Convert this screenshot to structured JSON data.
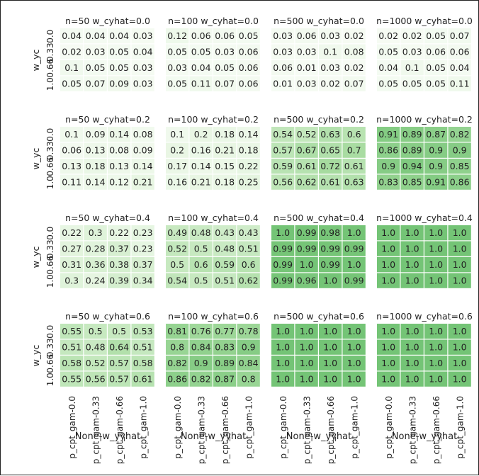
{
  "chart_data": {
    "type": "heatmap",
    "colormap": "greens",
    "vmin": 0,
    "vmax": 1,
    "xlabel": "None-w_yyhat",
    "ylabel": "w_yc",
    "col_categories": [
      "p_cpt_gam-0.0",
      "p_cpt_gam-0.33",
      "p_cpt_gam-0.66",
      "p_cpt_gam-1.0"
    ],
    "row_tick_labels": [
      "0.0",
      "0.33",
      "0.66",
      "1.0"
    ],
    "panels": [
      {
        "title": "n=50 w_cyhat=0.0",
        "cells": [
          [
            "0.04",
            "0.04",
            "0.04",
            "0.03"
          ],
          [
            "0.02",
            "0.03",
            "0.05",
            "0.04"
          ],
          [
            "0.1",
            "0.05",
            "0.05",
            "0.03"
          ],
          [
            "0.05",
            "0.07",
            "0.09",
            "0.03"
          ]
        ]
      },
      {
        "title": "n=100 w_cyhat=0.0",
        "cells": [
          [
            "0.12",
            "0.06",
            "0.06",
            "0.05"
          ],
          [
            "0.05",
            "0.05",
            "0.03",
            "0.06"
          ],
          [
            "0.03",
            "0.04",
            "0.05",
            "0.06"
          ],
          [
            "0.05",
            "0.11",
            "0.07",
            "0.06"
          ]
        ]
      },
      {
        "title": "n=500 w_cyhat=0.0",
        "cells": [
          [
            "0.03",
            "0.06",
            "0.03",
            "0.02"
          ],
          [
            "0.03",
            "0.03",
            "0.1",
            "0.08"
          ],
          [
            "0.06",
            "0.01",
            "0.03",
            "0.02"
          ],
          [
            "0.01",
            "0.03",
            "0.02",
            "0.07"
          ]
        ]
      },
      {
        "title": "n=1000 w_cyhat=0.0",
        "cells": [
          [
            "0.02",
            "0.02",
            "0.05",
            "0.07"
          ],
          [
            "0.05",
            "0.03",
            "0.06",
            "0.06"
          ],
          [
            "0.04",
            "0.1",
            "0.05",
            "0.04"
          ],
          [
            "0.05",
            "0.05",
            "0.05",
            "0.11"
          ]
        ]
      },
      {
        "title": "n=50 w_cyhat=0.2",
        "cells": [
          [
            "0.1",
            "0.09",
            "0.14",
            "0.08"
          ],
          [
            "0.06",
            "0.13",
            "0.08",
            "0.09"
          ],
          [
            "0.13",
            "0.18",
            "0.13",
            "0.14"
          ],
          [
            "0.11",
            "0.14",
            "0.12",
            "0.21"
          ]
        ]
      },
      {
        "title": "n=100 w_cyhat=0.2",
        "cells": [
          [
            "0.1",
            "0.2",
            "0.18",
            "0.14"
          ],
          [
            "0.2",
            "0.16",
            "0.21",
            "0.18"
          ],
          [
            "0.17",
            "0.14",
            "0.15",
            "0.22"
          ],
          [
            "0.16",
            "0.21",
            "0.18",
            "0.25"
          ]
        ]
      },
      {
        "title": "n=500 w_cyhat=0.2",
        "cells": [
          [
            "0.54",
            "0.52",
            "0.63",
            "0.6"
          ],
          [
            "0.57",
            "0.67",
            "0.65",
            "0.7"
          ],
          [
            "0.59",
            "0.61",
            "0.72",
            "0.61"
          ],
          [
            "0.56",
            "0.62",
            "0.61",
            "0.63"
          ]
        ]
      },
      {
        "title": "n=1000 w_cyhat=0.2",
        "cells": [
          [
            "0.91",
            "0.89",
            "0.87",
            "0.82"
          ],
          [
            "0.86",
            "0.89",
            "0.9",
            "0.9"
          ],
          [
            "0.9",
            "0.94",
            "0.9",
            "0.85"
          ],
          [
            "0.83",
            "0.85",
            "0.91",
            "0.86"
          ]
        ]
      },
      {
        "title": "n=50 w_cyhat=0.4",
        "cells": [
          [
            "0.22",
            "0.3",
            "0.22",
            "0.23"
          ],
          [
            "0.27",
            "0.28",
            "0.37",
            "0.23"
          ],
          [
            "0.31",
            "0.36",
            "0.38",
            "0.37"
          ],
          [
            "0.3",
            "0.24",
            "0.39",
            "0.34"
          ]
        ]
      },
      {
        "title": "n=100 w_cyhat=0.4",
        "cells": [
          [
            "0.49",
            "0.48",
            "0.43",
            "0.43"
          ],
          [
            "0.52",
            "0.5",
            "0.48",
            "0.51"
          ],
          [
            "0.5",
            "0.6",
            "0.59",
            "0.6"
          ],
          [
            "0.54",
            "0.5",
            "0.51",
            "0.62"
          ]
        ]
      },
      {
        "title": "n=500 w_cyhat=0.4",
        "cells": [
          [
            "1.0",
            "0.99",
            "0.98",
            "1.0"
          ],
          [
            "0.99",
            "0.99",
            "0.99",
            "0.99"
          ],
          [
            "0.99",
            "1.0",
            "0.99",
            "1.0"
          ],
          [
            "0.99",
            "0.96",
            "1.0",
            "0.99"
          ]
        ]
      },
      {
        "title": "n=1000 w_cyhat=0.4",
        "cells": [
          [
            "1.0",
            "1.0",
            "1.0",
            "1.0"
          ],
          [
            "1.0",
            "1.0",
            "1.0",
            "1.0"
          ],
          [
            "1.0",
            "1.0",
            "1.0",
            "1.0"
          ],
          [
            "1.0",
            "1.0",
            "1.0",
            "1.0"
          ]
        ]
      },
      {
        "title": "n=50 w_cyhat=0.6",
        "cells": [
          [
            "0.55",
            "0.5",
            "0.5",
            "0.53"
          ],
          [
            "0.51",
            "0.48",
            "0.64",
            "0.51"
          ],
          [
            "0.58",
            "0.52",
            "0.57",
            "0.58"
          ],
          [
            "0.55",
            "0.56",
            "0.57",
            "0.61"
          ]
        ]
      },
      {
        "title": "n=100 w_cyhat=0.6",
        "cells": [
          [
            "0.81",
            "0.76",
            "0.77",
            "0.78"
          ],
          [
            "0.8",
            "0.84",
            "0.83",
            "0.9"
          ],
          [
            "0.82",
            "0.9",
            "0.89",
            "0.84"
          ],
          [
            "0.86",
            "0.82",
            "0.87",
            "0.8"
          ]
        ]
      },
      {
        "title": "n=500 w_cyhat=0.6",
        "cells": [
          [
            "1.0",
            "1.0",
            "1.0",
            "1.0"
          ],
          [
            "1.0",
            "1.0",
            "1.0",
            "1.0"
          ],
          [
            "1.0",
            "1.0",
            "1.0",
            "1.0"
          ],
          [
            "1.0",
            "1.0",
            "1.0",
            "1.0"
          ]
        ]
      },
      {
        "title": "n=1000 w_cyhat=0.6",
        "cells": [
          [
            "1.0",
            "1.0",
            "1.0",
            "1.0"
          ],
          [
            "1.0",
            "1.0",
            "1.0",
            "1.0"
          ],
          [
            "1.0",
            "1.0",
            "1.0",
            "1.0"
          ],
          [
            "1.0",
            "1.0",
            "1.0",
            "1.0"
          ]
        ]
      }
    ]
  }
}
